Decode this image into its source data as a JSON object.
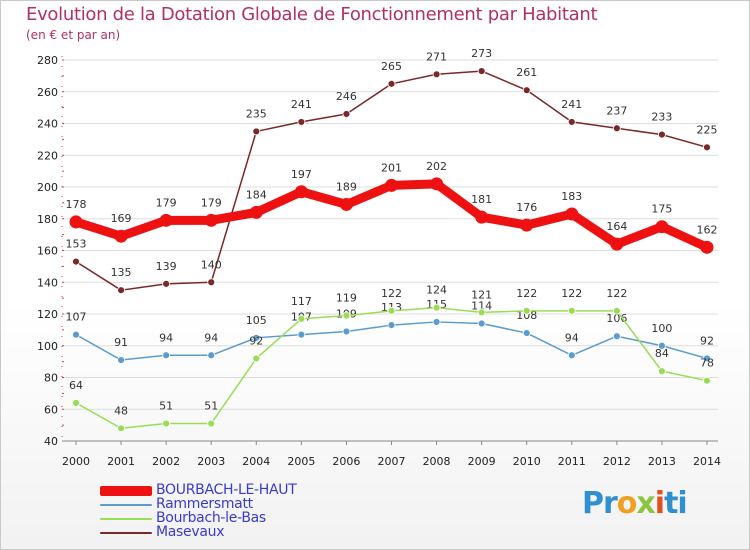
{
  "title": "Evolution de la Dotation Globale de Fonctionnement par Habitant",
  "subtitle": "(en € et par an)",
  "brand": {
    "p1": "Pr",
    "p2": "o",
    "p3": "x",
    "p4": "i",
    "p5": "ti"
  },
  "colors": {
    "series": [
      "#ee1111",
      "#5b9bd0",
      "#99dd55",
      "#7a2828"
    ],
    "grid": "#dddddd",
    "title": "#b0306a",
    "legend_text": "#3a3ad0"
  },
  "chart_data": {
    "type": "line",
    "title": "Evolution de la Dotation Globale de Fonctionnement par Habitant",
    "subtitle": "(en € et par an)",
    "xlabel": "",
    "ylabel": "",
    "ylim": [
      40,
      280
    ],
    "yticks": [
      40,
      60,
      80,
      100,
      120,
      140,
      160,
      180,
      200,
      220,
      240,
      260,
      280
    ],
    "categories": [
      "2000",
      "2001",
      "2002",
      "2003",
      "2004",
      "2005",
      "2006",
      "2007",
      "2008",
      "2009",
      "2010",
      "2011",
      "2012",
      "2013",
      "2014"
    ],
    "grid": true,
    "legend_position": "bottom-left",
    "series": [
      {
        "name": "BOURBACH-LE-HAUT",
        "values": [
          178,
          169,
          179,
          179,
          184,
          197,
          189,
          201,
          202,
          181,
          176,
          183,
          164,
          175,
          162
        ]
      },
      {
        "name": "Rammersmatt",
        "values": [
          107,
          91,
          94,
          94,
          105,
          107,
          109,
          113,
          115,
          114,
          108,
          94,
          106,
          100,
          92
        ]
      },
      {
        "name": "Bourbach-le-Bas",
        "values": [
          64,
          48,
          51,
          51,
          92,
          117,
          119,
          122,
          124,
          121,
          122,
          122,
          122,
          84,
          78
        ]
      },
      {
        "name": "Masevaux",
        "values": [
          153,
          135,
          139,
          140,
          235,
          241,
          246,
          265,
          271,
          273,
          261,
          241,
          237,
          233,
          225
        ]
      }
    ]
  }
}
